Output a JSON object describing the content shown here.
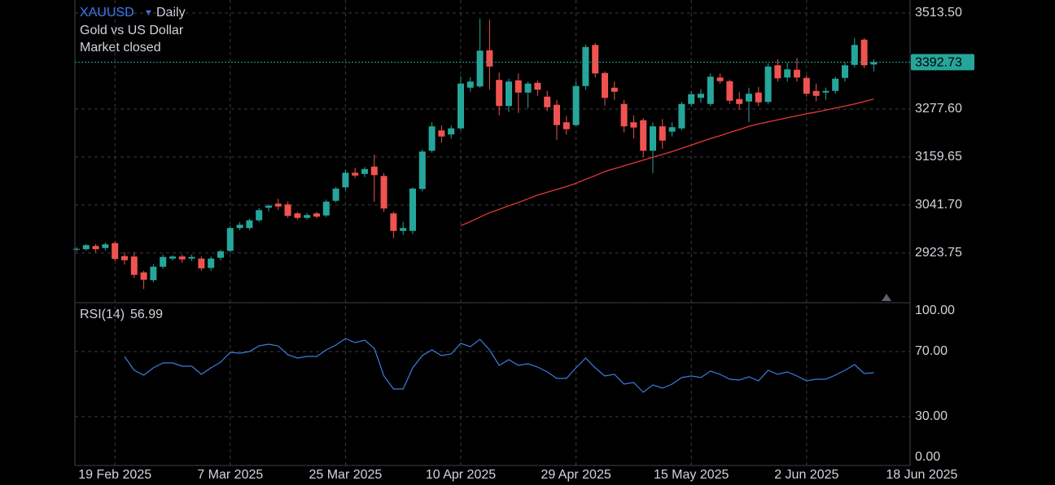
{
  "chart_data": {
    "type": "candlestick",
    "title": "XAUUSD",
    "interval": "Daily",
    "subtitle": "Gold vs US Dollar",
    "status": "Market closed",
    "up_color": "#26a69a",
    "down_color": "#ef5350",
    "grid": true,
    "x": [
      "2025-02-13",
      "2025-02-14",
      "2025-02-17",
      "2025-02-18",
      "2025-02-19",
      "2025-02-20",
      "2025-02-21",
      "2025-02-24",
      "2025-02-25",
      "2025-02-26",
      "2025-02-27",
      "2025-02-28",
      "2025-03-03",
      "2025-03-04",
      "2025-03-05",
      "2025-03-06",
      "2025-03-07",
      "2025-03-10",
      "2025-03-11",
      "2025-03-12",
      "2025-03-13",
      "2025-03-14",
      "2025-03-17",
      "2025-03-18",
      "2025-03-19",
      "2025-03-20",
      "2025-03-21",
      "2025-03-24",
      "2025-03-25",
      "2025-03-26",
      "2025-03-27",
      "2025-03-28",
      "2025-03-31",
      "2025-04-01",
      "2025-04-02",
      "2025-04-03",
      "2025-04-04",
      "2025-04-07",
      "2025-04-08",
      "2025-04-09",
      "2025-04-10",
      "2025-04-11",
      "2025-04-14",
      "2025-04-15",
      "2025-04-16",
      "2025-04-17",
      "2025-04-21",
      "2025-04-22",
      "2025-04-23",
      "2025-04-24",
      "2025-04-25",
      "2025-04-28",
      "2025-04-29",
      "2025-04-30",
      "2025-05-01",
      "2025-05-02",
      "2025-05-05",
      "2025-05-06",
      "2025-05-07",
      "2025-05-08",
      "2025-05-09",
      "2025-05-12",
      "2025-05-13",
      "2025-05-14",
      "2025-05-15",
      "2025-05-16",
      "2025-05-19",
      "2025-05-20",
      "2025-05-21",
      "2025-05-22",
      "2025-05-23",
      "2025-05-26",
      "2025-05-27",
      "2025-05-28",
      "2025-05-29",
      "2025-05-30",
      "2025-06-02",
      "2025-06-03",
      "2025-06-04",
      "2025-06-05",
      "2025-06-06",
      "2025-06-09",
      "2025-06-10",
      "2025-06-11"
    ],
    "open": [
      2932,
      2933,
      2941,
      2936,
      2948,
      2916,
      2915,
      2876,
      2857,
      2890,
      2910,
      2915,
      2910,
      2910,
      2887,
      2912,
      2929,
      2985,
      2985,
      3004,
      3035,
      3045,
      3043,
      3021,
      3010,
      3021,
      3016,
      3052,
      3085,
      3121,
      3118,
      3136,
      3113,
      3021,
      2978,
      2978,
      3081,
      3175,
      3225,
      3215,
      3230,
      3330,
      3333,
      3422,
      3349,
      3285,
      3348,
      3318,
      3342,
      3308,
      3288,
      3245,
      3238,
      3334,
      3435,
      3366,
      3330,
      3290,
      3245,
      3250,
      3175,
      3235,
      3222,
      3230,
      3290,
      3305,
      3290,
      3355,
      3346,
      3302,
      3296,
      3318,
      3295,
      3385,
      3355,
      3374,
      3354,
      3322,
      3318,
      3322,
      3354,
      3386,
      3448,
      3387
    ],
    "high": [
      2938,
      2946,
      2946,
      2950,
      2952,
      2925,
      2925,
      2880,
      2896,
      2920,
      2918,
      2920,
      2920,
      2915,
      2915,
      2932,
      2990,
      3000,
      3008,
      3034,
      3044,
      3057,
      3050,
      3025,
      3022,
      3025,
      3055,
      3086,
      3128,
      3133,
      3135,
      3165,
      3120,
      3025,
      3000,
      3085,
      3178,
      3245,
      3237,
      3237,
      3358,
      3356,
      3500,
      3497,
      3367,
      3352,
      3365,
      3345,
      3348,
      3322,
      3300,
      3260,
      3345,
      3436,
      3440,
      3370,
      3345,
      3300,
      3262,
      3255,
      3245,
      3253,
      3245,
      3295,
      3322,
      3327,
      3365,
      3365,
      3350,
      3320,
      3330,
      3332,
      3390,
      3400,
      3392,
      3403,
      3360,
      3340,
      3330,
      3357,
      3392,
      3452,
      3452,
      3400
    ],
    "low": [
      2928,
      2930,
      2925,
      2930,
      2905,
      2895,
      2862,
      2835,
      2852,
      2885,
      2905,
      2900,
      2904,
      2880,
      2880,
      2905,
      2925,
      2980,
      2980,
      3000,
      3026,
      3030,
      3010,
      3005,
      3006,
      3009,
      3012,
      3048,
      3078,
      3108,
      3110,
      3050,
      3025,
      2960,
      2968,
      2970,
      3075,
      3170,
      3195,
      3205,
      3225,
      3320,
      3330,
      3325,
      3262,
      3270,
      3268,
      3280,
      3310,
      3272,
      3202,
      3215,
      3235,
      3325,
      3355,
      3286,
      3300,
      3220,
      3205,
      3160,
      3120,
      3180,
      3210,
      3225,
      3285,
      3293,
      3285,
      3340,
      3290,
      3275,
      3245,
      3285,
      3290,
      3345,
      3345,
      3345,
      3308,
      3297,
      3300,
      3315,
      3345,
      3380,
      3378,
      3370
    ],
    "close": [
      2934,
      2943,
      2933,
      2945,
      2909,
      2906,
      2870,
      2858,
      2890,
      2914,
      2915,
      2908,
      2914,
      2886,
      2910,
      2928,
      2985,
      2993,
      3004,
      3029,
      3040,
      3038,
      3015,
      3010,
      3017,
      3013,
      3050,
      3082,
      3121,
      3114,
      3130,
      3115,
      3033,
      2978,
      2985,
      3082,
      3173,
      3235,
      3210,
      3230,
      3340,
      3345,
      3421,
      3382,
      3285,
      3345,
      3318,
      3340,
      3325,
      3282,
      3238,
      3228,
      3334,
      3430,
      3365,
      3305,
      3320,
      3235,
      3232,
      3175,
      3235,
      3200,
      3233,
      3290,
      3314,
      3315,
      3357,
      3346,
      3298,
      3290,
      3315,
      3294,
      3382,
      3353,
      3375,
      3355,
      3315,
      3310,
      3322,
      3352,
      3385,
      3435,
      3385,
      3392.73
    ],
    "ma": {
      "color": "#e53935",
      "values": [
        null,
        null,
        null,
        null,
        null,
        null,
        null,
        null,
        null,
        null,
        null,
        null,
        null,
        null,
        null,
        null,
        null,
        null,
        null,
        null,
        null,
        null,
        null,
        null,
        null,
        null,
        null,
        null,
        null,
        null,
        null,
        null,
        null,
        null,
        null,
        null,
        null,
        null,
        null,
        null,
        2991,
        3001,
        3012,
        3023,
        3031,
        3040,
        3048,
        3057,
        3066,
        3073,
        3080,
        3087,
        3095,
        3105,
        3114,
        3124,
        3131,
        3138,
        3145,
        3152,
        3159,
        3166,
        3173,
        3181,
        3189,
        3197,
        3205,
        3212,
        3220,
        3227,
        3235,
        3241,
        3246,
        3251,
        3256,
        3261,
        3266,
        3270,
        3275,
        3280,
        3285,
        3290,
        3296,
        3302
      ]
    },
    "ylim": [
      2801.5,
      3545.5
    ],
    "yticks": [
      {
        "value": 3513.5,
        "label": "3513.50"
      },
      {
        "value": 3277.6,
        "label": "3277.60"
      },
      3159.65,
      {
        "value": 3041.7,
        "label": "3041.70"
      },
      2923.75
    ],
    "xticks": [
      {
        "value": "2025-02-19",
        "label": "19 Feb 2025"
      },
      {
        "value": "2025-03-07",
        "label": "7 Mar 2025"
      },
      {
        "value": "2025-03-25",
        "label": "25 Mar 2025"
      },
      {
        "value": "2025-04-10",
        "label": "10 Apr 2025"
      },
      {
        "value": "2025-04-29",
        "label": "29 Apr 2025"
      },
      {
        "value": "2025-05-15",
        "label": "15 May 2025"
      },
      {
        "value": "2025-06-02",
        "label": "2 Jun 2025"
      },
      {
        "value": "2025-06-18",
        "label": "18 Jun 2025"
      }
    ],
    "rsi": {
      "label": "RSI(14)",
      "color": "#3b7ddd",
      "values": [
        null,
        null,
        null,
        null,
        null,
        67,
        58.5,
        55.5,
        60,
        63,
        63,
        61,
        61,
        56,
        60,
        63.5,
        69.5,
        69,
        70,
        73.5,
        74.5,
        73.5,
        68,
        66,
        67,
        67,
        71,
        74,
        78,
        75.5,
        77,
        72,
        55,
        47,
        47,
        60,
        67.5,
        71,
        67.5,
        68.5,
        75,
        73,
        77.5,
        71,
        61.5,
        65,
        61.5,
        62.5,
        60.5,
        57.5,
        53.5,
        53.5,
        60,
        66,
        60,
        55,
        56,
        50,
        51,
        45,
        49.5,
        47.5,
        50,
        54,
        55,
        54,
        58,
        56,
        53,
        52.5,
        54.5,
        52,
        58.5,
        56,
        57.5,
        55,
        52,
        53,
        53,
        55.5,
        58.5,
        62,
        56.5,
        56.99
      ],
      "ylim": [
        0,
        100
      ],
      "yticks": [
        {
          "value": 100,
          "label": "100.00"
        },
        {
          "value": 70,
          "label": "70.00"
        },
        {
          "value": 30,
          "label": "30.00"
        },
        {
          "value": 0,
          "label": "0.00"
        }
      ]
    }
  }
}
